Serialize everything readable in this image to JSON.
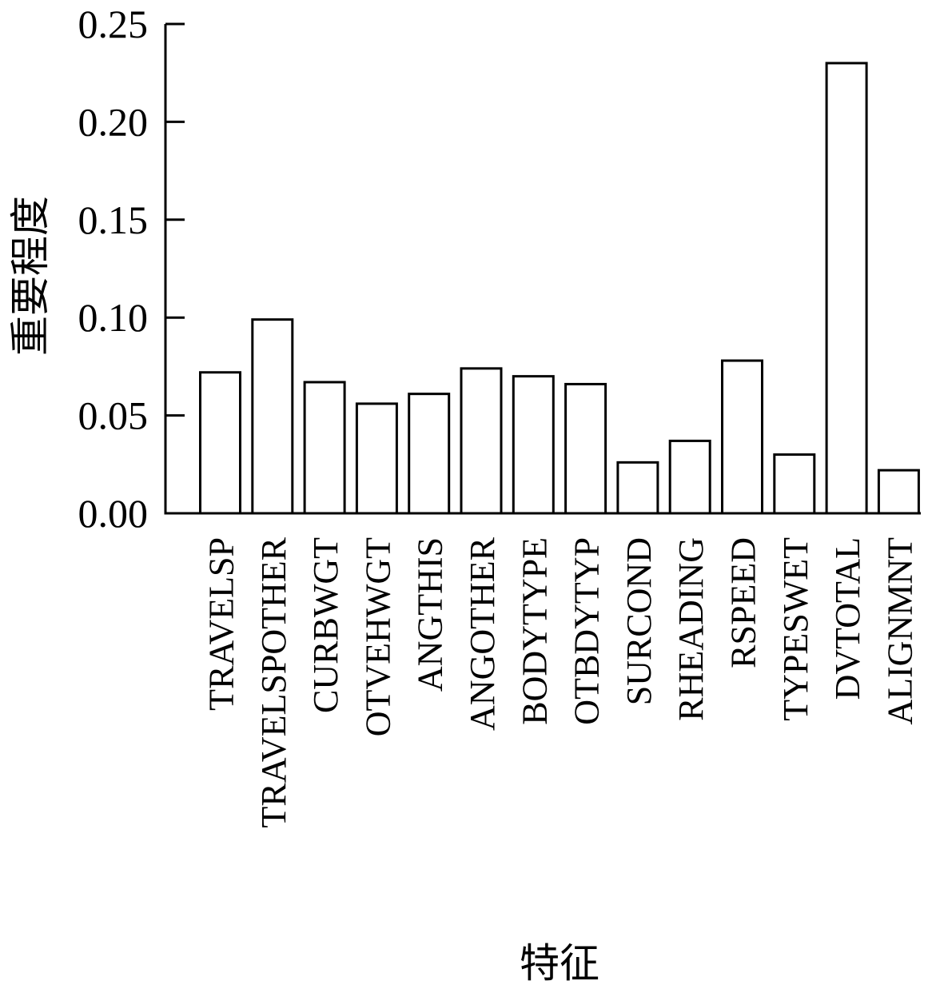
{
  "chart_data": {
    "type": "bar",
    "title": "",
    "xlabel": "特征",
    "ylabel": "重要程度",
    "ylim": [
      0,
      0.25
    ],
    "yticks": [
      "0.00",
      "0.05",
      "0.10",
      "0.15",
      "0.20",
      "0.25"
    ],
    "grid": false,
    "legend": "none",
    "categories": [
      "TRAVELSP",
      "TRAVELSPOTHER",
      "CURBWGT",
      "OTVEHWGT",
      "ANGTHIS",
      "ANGOTHER",
      "BODYTYPE",
      "OTBDYTYP",
      "SURCOND",
      "RHEADING",
      "RSPEED",
      "TYPESWET",
      "DVTOTAL",
      "ALIGNMNT"
    ],
    "values": [
      0.072,
      0.099,
      0.067,
      0.056,
      0.061,
      0.074,
      0.07,
      0.066,
      0.026,
      0.037,
      0.078,
      0.03,
      0.23,
      0.022
    ],
    "colors": {
      "bar_fill": "#ffffff",
      "bar_stroke": "#000000",
      "axis": "#000000"
    }
  }
}
